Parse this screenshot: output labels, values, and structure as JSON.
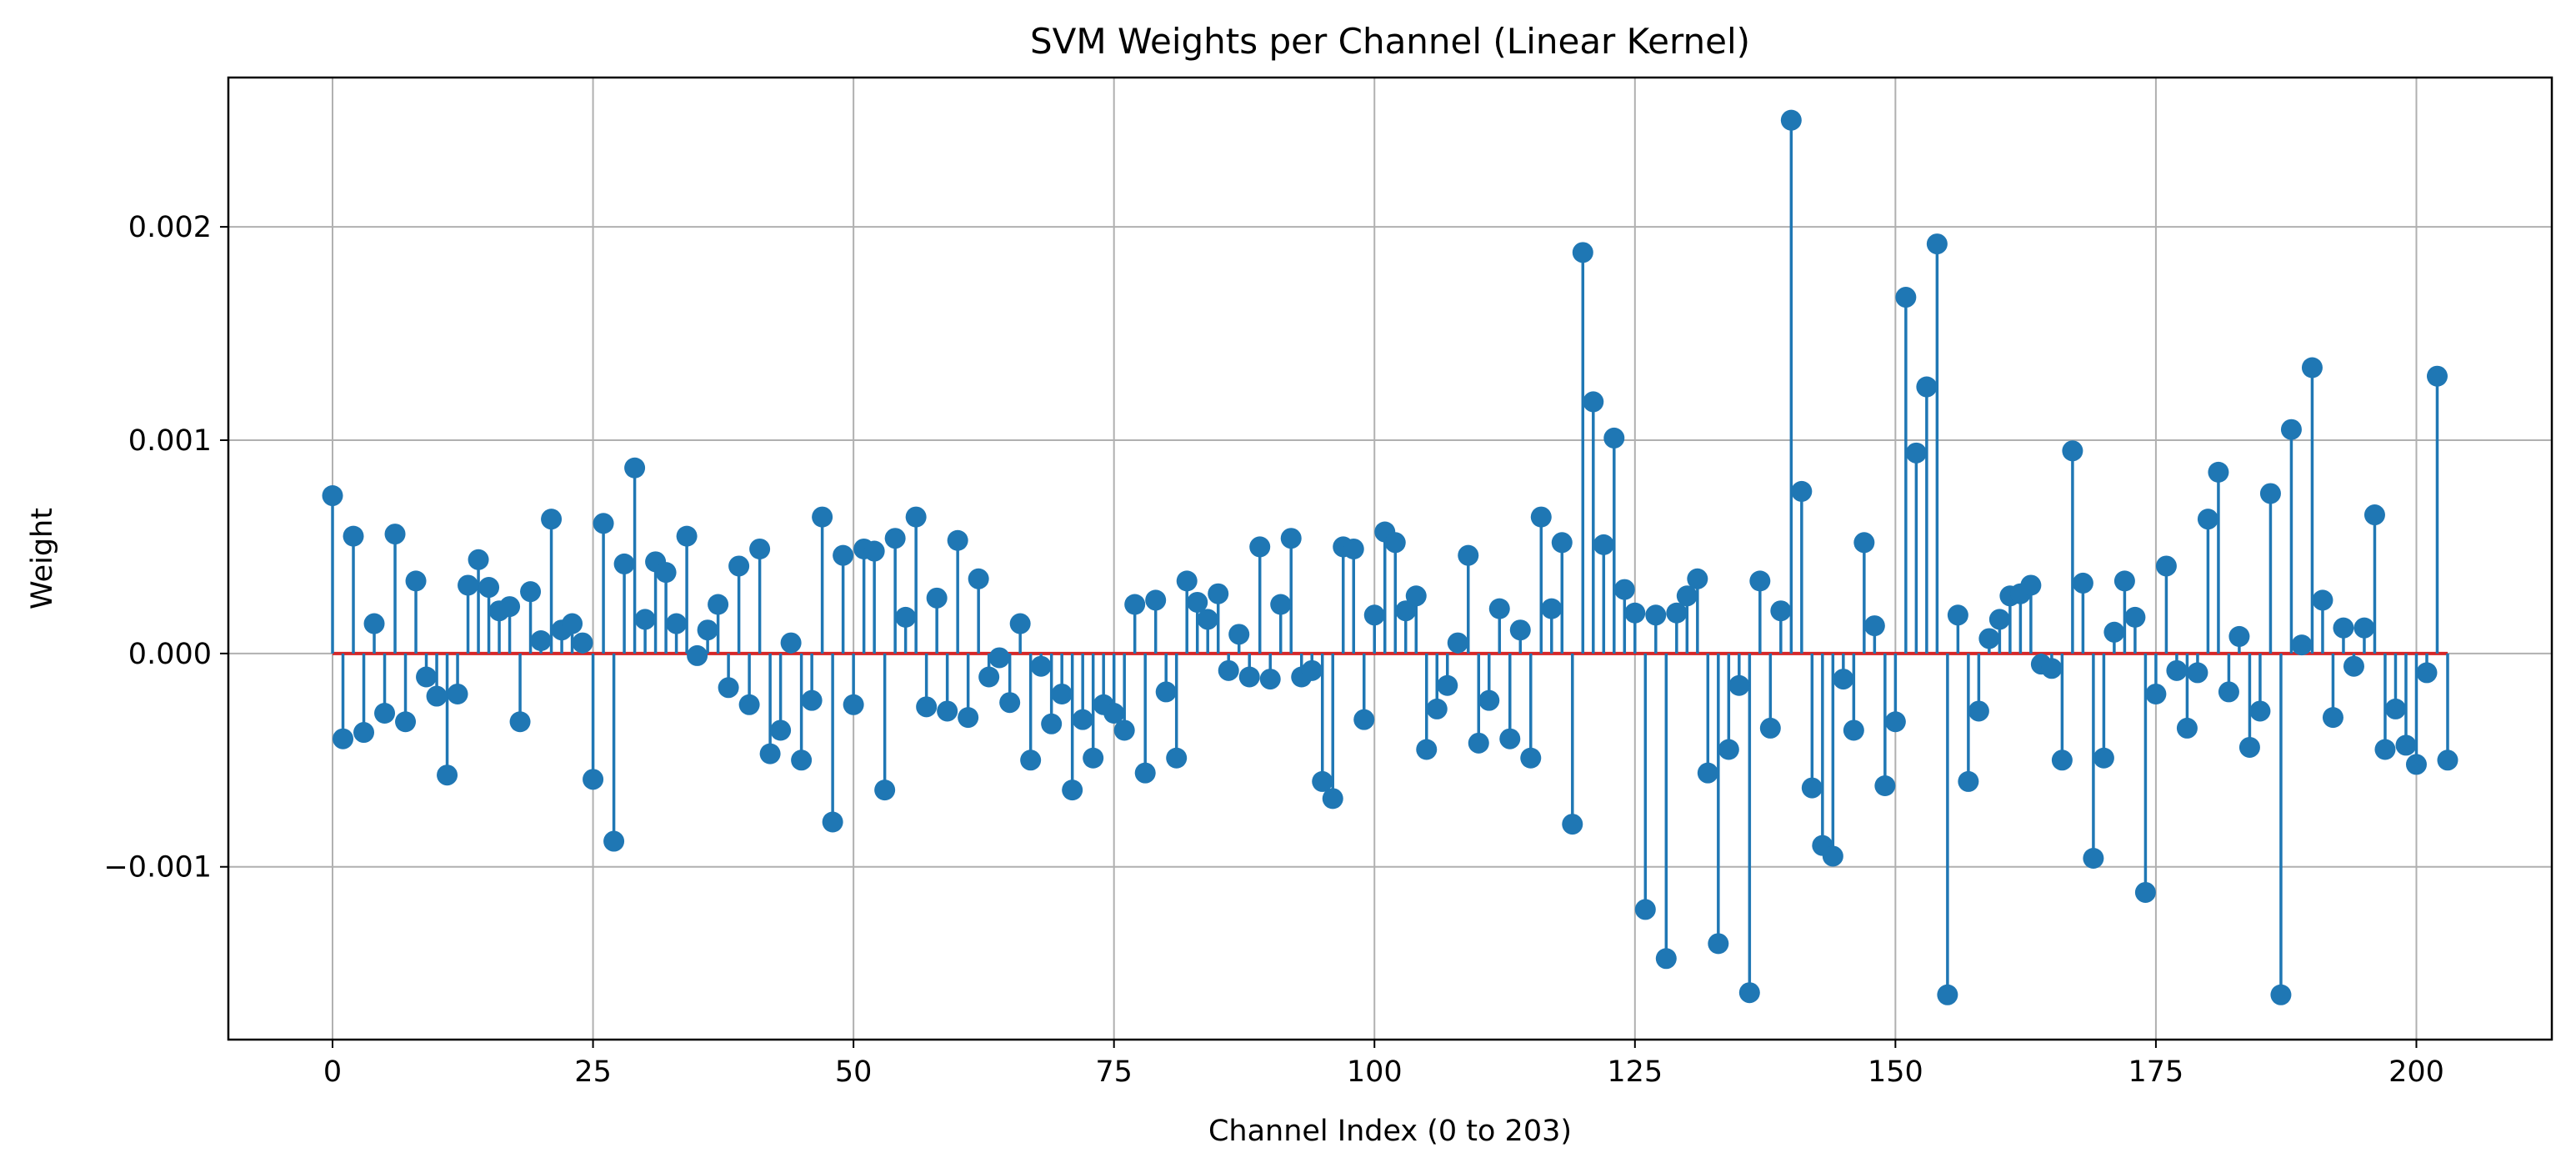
{
  "chart_data": {
    "type": "stem",
    "title": "SVM Weights per Channel (Linear Kernel)",
    "xlabel": "Channel Index (0 to 203)",
    "ylabel": "Weight",
    "xlim": [
      -10,
      213
    ],
    "ylim": [
      -0.00181,
      0.0027
    ],
    "xticks": [
      0,
      25,
      50,
      75,
      100,
      125,
      150,
      175,
      200
    ],
    "xtick_labels": [
      "0",
      "25",
      "50",
      "75",
      "100",
      "125",
      "150",
      "175",
      "200"
    ],
    "yticks": [
      -0.001,
      0.0,
      0.001,
      0.002
    ],
    "ytick_labels": [
      "−0.001",
      "0.000",
      "0.001",
      "0.002"
    ],
    "grid": true,
    "baseline": 0.0,
    "series": [
      {
        "color": "#1f77b4",
        "baseline_color": "#d62728",
        "x_start": 0,
        "values": [
          0.00074,
          -0.0004,
          0.00055,
          -0.00037,
          0.00014,
          -0.00028,
          0.00056,
          -0.00032,
          0.00034,
          -0.00011,
          -0.0002,
          -0.00057,
          -0.00019,
          0.00032,
          0.00044,
          0.00031,
          0.0002,
          0.00022,
          -0.00032,
          0.00029,
          6e-05,
          0.00063,
          0.00011,
          0.00014,
          5e-05,
          -0.00059,
          0.00061,
          -0.00088,
          0.00042,
          0.00087,
          0.00016,
          0.00043,
          0.00038,
          0.00014,
          0.00055,
          -1e-05,
          0.00011,
          0.00023,
          -0.00016,
          0.00041,
          -0.00024,
          0.00049,
          -0.00047,
          -0.00036,
          5e-05,
          -0.0005,
          -0.00022,
          0.00064,
          -0.00079,
          0.00046,
          -0.00024,
          0.00049,
          0.00048,
          -0.00064,
          0.00054,
          0.00017,
          0.00064,
          -0.00025,
          0.00026,
          -0.00027,
          0.00053,
          -0.0003,
          0.00035,
          -0.00011,
          -2e-05,
          -0.00023,
          0.00014,
          -0.0005,
          -6e-05,
          -0.00033,
          -0.00019,
          -0.00064,
          -0.00031,
          -0.00049,
          -0.00024,
          -0.00028,
          -0.00036,
          0.00023,
          -0.00056,
          0.00025,
          -0.00018,
          -0.00049,
          0.00034,
          0.00024,
          0.00016,
          0.00028,
          -8e-05,
          9e-05,
          -0.00011,
          0.0005,
          -0.00012,
          0.00023,
          0.00054,
          -0.00011,
          -8e-05,
          -0.0006,
          -0.00068,
          0.0005,
          0.00049,
          -0.00031,
          0.00018,
          0.00057,
          0.00052,
          0.0002,
          0.00027,
          -0.00045,
          -0.00026,
          -0.00015,
          5e-05,
          0.00046,
          -0.00042,
          -0.00022,
          0.00021,
          -0.0004,
          0.00011,
          -0.00049,
          0.00064,
          0.00021,
          0.00052,
          -0.0008,
          0.00188,
          0.00118,
          0.00051,
          0.00101,
          0.0003,
          0.00019,
          -0.0012,
          0.00018,
          -0.00143,
          0.00019,
          0.00027,
          0.00035,
          -0.00056,
          -0.00136,
          -0.00045,
          -0.00015,
          -0.00159,
          0.00034,
          -0.00035,
          0.0002,
          0.0025,
          0.00076,
          -0.00063,
          -0.0009,
          -0.00095,
          -0.00012,
          -0.00036,
          0.00052,
          0.00013,
          -0.00062,
          -0.00032,
          0.00167,
          0.00094,
          0.00125,
          0.00192,
          -0.0016,
          0.00018,
          -0.0006,
          -0.00027,
          7e-05,
          0.00016,
          0.00027,
          0.00028,
          0.00032,
          -5e-05,
          -7e-05,
          -0.0005,
          0.00095,
          0.00033,
          -0.00096,
          -0.00049,
          0.0001,
          0.00034,
          0.00017,
          -0.00112,
          -0.00019,
          0.00041,
          -8e-05,
          -0.00035,
          -9e-05,
          0.00063,
          0.00085,
          -0.00018,
          8e-05,
          -0.00044,
          -0.00027,
          0.00075,
          -0.0016,
          0.00105,
          4e-05,
          0.00134,
          0.00025,
          -0.0003,
          0.00012,
          -6e-05,
          0.00012,
          0.00065,
          -0.00045,
          -0.00026,
          -0.00043,
          -0.00052,
          -9e-05,
          0.0013,
          -0.0005
        ]
      }
    ]
  }
}
